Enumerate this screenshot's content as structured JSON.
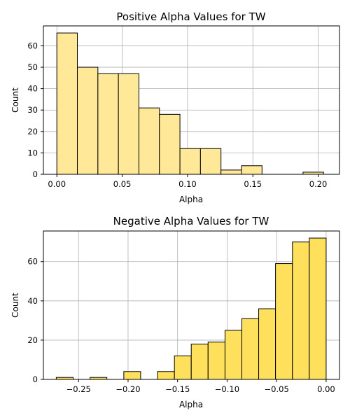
{
  "chart_data": [
    {
      "type": "bar",
      "title": "Positive Alpha Values for TW",
      "xlabel": "Alpha",
      "ylabel": "Count",
      "color": "#FFE999",
      "edge_color": "#000000",
      "grid": true,
      "xlim": [
        -0.0103,
        0.2163
      ],
      "ylim": [
        0,
        69.3
      ],
      "xticks": [
        0.0,
        0.05,
        0.1,
        0.15,
        0.2
      ],
      "xtick_labels": [
        "0.00",
        "0.05",
        "0.10",
        "0.15",
        "0.20"
      ],
      "yticks": [
        0,
        10,
        20,
        30,
        40,
        50,
        60
      ],
      "ytick_labels": [
        "0",
        "10",
        "20",
        "30",
        "40",
        "50",
        "60"
      ],
      "bins": [
        {
          "x0": 0.0,
          "x1": 0.0157,
          "count": 66
        },
        {
          "x0": 0.0157,
          "x1": 0.0314,
          "count": 50
        },
        {
          "x0": 0.0314,
          "x1": 0.0471,
          "count": 47
        },
        {
          "x0": 0.0471,
          "x1": 0.0628,
          "count": 47
        },
        {
          "x0": 0.0628,
          "x1": 0.0785,
          "count": 31
        },
        {
          "x0": 0.0785,
          "x1": 0.0942,
          "count": 28
        },
        {
          "x0": 0.0942,
          "x1": 0.1099,
          "count": 12
        },
        {
          "x0": 0.1099,
          "x1": 0.1256,
          "count": 12
        },
        {
          "x0": 0.1256,
          "x1": 0.1413,
          "count": 2
        },
        {
          "x0": 0.1413,
          "x1": 0.157,
          "count": 4
        },
        {
          "x0": 0.157,
          "x1": 0.1727,
          "count": 0
        },
        {
          "x0": 0.1727,
          "x1": 0.1884,
          "count": 0
        },
        {
          "x0": 0.1884,
          "x1": 0.2041,
          "count": 1
        }
      ]
    },
    {
      "type": "bar",
      "title": "Negative Alpha Values for TW",
      "xlabel": "Alpha",
      "ylabel": "Count",
      "color": "#FFE05C",
      "edge_color": "#000000",
      "grid": true,
      "xlim": [
        -0.2855,
        0.0135
      ],
      "ylim": [
        0,
        75.6
      ],
      "xticks": [
        -0.25,
        -0.2,
        -0.15,
        -0.1,
        -0.05,
        0.0
      ],
      "xtick_labels": [
        "−0.25",
        "−0.20",
        "−0.15",
        "−0.10",
        "−0.05",
        "0.00"
      ],
      "yticks": [
        0,
        20,
        40,
        60
      ],
      "ytick_labels": [
        "0",
        "20",
        "40",
        "60"
      ],
      "bins": [
        {
          "x0": -0.2725,
          "x1": -0.2554,
          "count": 1
        },
        {
          "x0": -0.2554,
          "x1": -0.2384,
          "count": 0
        },
        {
          "x0": -0.2384,
          "x1": -0.2214,
          "count": 1
        },
        {
          "x0": -0.2214,
          "x1": -0.2043,
          "count": 0
        },
        {
          "x0": -0.2043,
          "x1": -0.1873,
          "count": 4
        },
        {
          "x0": -0.1873,
          "x1": -0.1703,
          "count": 0
        },
        {
          "x0": -0.1703,
          "x1": -0.1532,
          "count": 4
        },
        {
          "x0": -0.1532,
          "x1": -0.1362,
          "count": 12
        },
        {
          "x0": -0.1362,
          "x1": -0.1192,
          "count": 18
        },
        {
          "x0": -0.1192,
          "x1": -0.1021,
          "count": 19
        },
        {
          "x0": -0.1021,
          "x1": -0.0851,
          "count": 25
        },
        {
          "x0": -0.0851,
          "x1": -0.0681,
          "count": 31
        },
        {
          "x0": -0.0681,
          "x1": -0.0511,
          "count": 36
        },
        {
          "x0": -0.0511,
          "x1": -0.034,
          "count": 59
        },
        {
          "x0": -0.034,
          "x1": -0.017,
          "count": 70
        },
        {
          "x0": -0.017,
          "x1": 0.0,
          "count": 72
        }
      ]
    }
  ]
}
